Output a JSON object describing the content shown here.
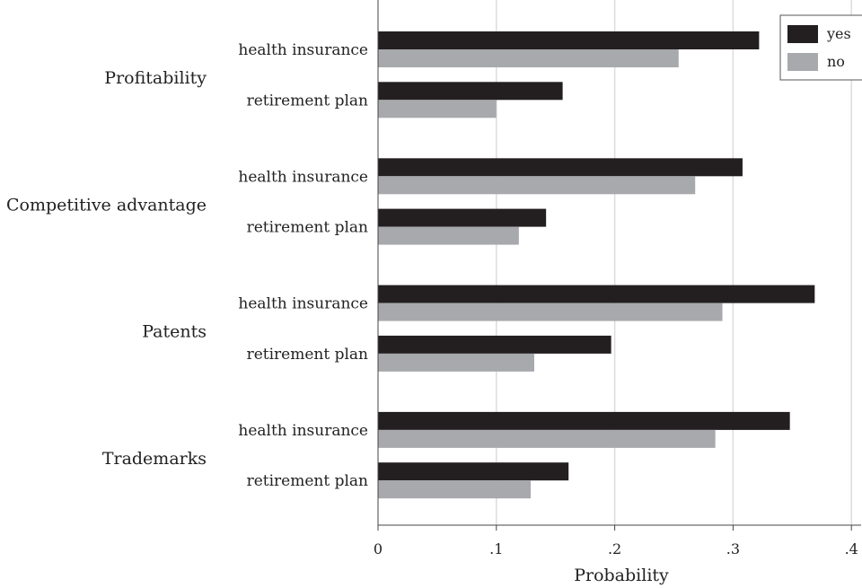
{
  "chart_data": {
    "type": "bar",
    "orientation": "horizontal",
    "xlabel": "Probability",
    "ylabel": "",
    "xlim": [
      0,
      0.4
    ],
    "ticks": [
      0,
      0.1,
      0.2,
      0.3,
      0.4
    ],
    "tick_labels": [
      "0",
      ".1",
      ".2",
      ".3",
      ".4"
    ],
    "grid": true,
    "legend": {
      "position": "top-right",
      "entries": [
        {
          "name": "yes",
          "color": "#231f20"
        },
        {
          "name": "no",
          "color": "#a7a9ac"
        }
      ]
    },
    "series": [
      {
        "name": "yes",
        "color": "#231f20"
      },
      {
        "name": "no",
        "color": "#a7a9ac"
      }
    ],
    "groups": [
      {
        "label": "Profitability",
        "categories": [
          {
            "label": "health insurance",
            "values": [
              0.322,
              0.254
            ]
          },
          {
            "label": "retirement plan",
            "values": [
              0.156,
              0.1
            ]
          }
        ]
      },
      {
        "label": "Competitive advantage",
        "categories": [
          {
            "label": "health insurance",
            "values": [
              0.308,
              0.268
            ]
          },
          {
            "label": "retirement plan",
            "values": [
              0.142,
              0.119
            ]
          }
        ]
      },
      {
        "label": "Patents",
        "categories": [
          {
            "label": "health insurance",
            "values": [
              0.369,
              0.291
            ]
          },
          {
            "label": "retirement plan",
            "values": [
              0.197,
              0.132
            ]
          }
        ]
      },
      {
        "label": "Trademarks",
        "categories": [
          {
            "label": "health insurance",
            "values": [
              0.348,
              0.285
            ]
          },
          {
            "label": "retirement plan",
            "values": [
              0.161,
              0.129
            ]
          }
        ]
      }
    ]
  }
}
